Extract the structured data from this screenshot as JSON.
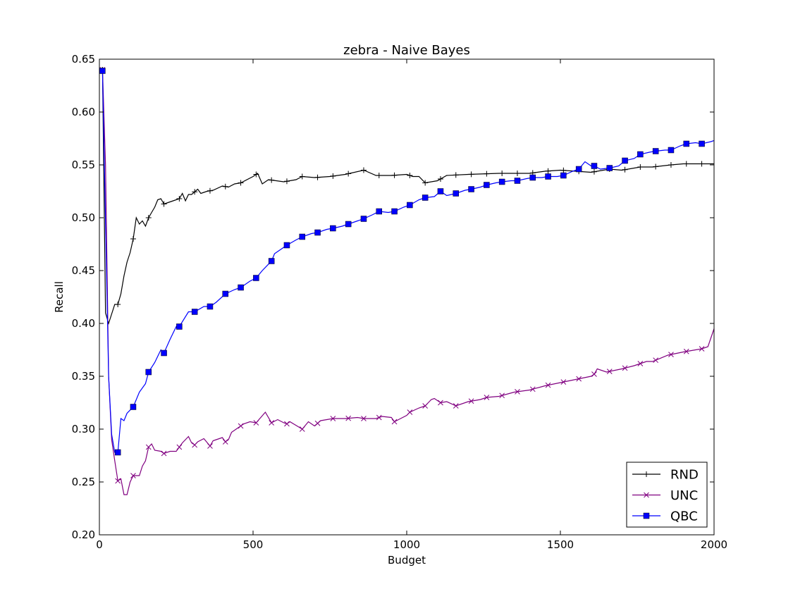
{
  "chart_data": {
    "type": "line",
    "title": "zebra - Naive Bayes",
    "xlabel": "Budget",
    "ylabel": "Recall",
    "xlim": [
      0,
      2000
    ],
    "ylim": [
      0.2,
      0.65
    ],
    "xticks": [
      "0",
      "500",
      "1000",
      "1500",
      "2000"
    ],
    "yticks": [
      "0.20",
      "0.25",
      "0.30",
      "0.35",
      "0.40",
      "0.45",
      "0.50",
      "0.55",
      "0.60",
      "0.65"
    ],
    "grid": false,
    "legend_position": "lower-right",
    "series": [
      {
        "name": "RND",
        "color": "#000000",
        "marker": "plus",
        "x": [
          10,
          20,
          30,
          50,
          60,
          70,
          80,
          90,
          100,
          110,
          120,
          130,
          140,
          150,
          160,
          170,
          180,
          190,
          200,
          210,
          220,
          240,
          260,
          270,
          280,
          290,
          300,
          320,
          330,
          350,
          370,
          400,
          420,
          440,
          460,
          500,
          515,
          530,
          550,
          600,
          640,
          660,
          700,
          750,
          800,
          860,
          900,
          950,
          1000,
          1020,
          1040,
          1060,
          1100,
          1130,
          1200,
          1300,
          1400,
          1450,
          1500,
          1550,
          1600,
          1660,
          1700,
          1760,
          1800,
          1860,
          1900,
          1960,
          2000
        ],
        "y": [
          0.64,
          0.41,
          0.4,
          0.418,
          0.418,
          0.428,
          0.445,
          0.458,
          0.467,
          0.48,
          0.5,
          0.494,
          0.497,
          0.492,
          0.5,
          0.505,
          0.51,
          0.517,
          0.518,
          0.513,
          0.514,
          0.516,
          0.518,
          0.523,
          0.516,
          0.522,
          0.522,
          0.527,
          0.523,
          0.525,
          0.526,
          0.53,
          0.529,
          0.532,
          0.533,
          0.539,
          0.542,
          0.532,
          0.536,
          0.534,
          0.536,
          0.539,
          0.538,
          0.539,
          0.541,
          0.545,
          0.54,
          0.54,
          0.541,
          0.539,
          0.539,
          0.533,
          0.535,
          0.54,
          0.541,
          0.542,
          0.542,
          0.544,
          0.545,
          0.544,
          0.543,
          0.546,
          0.545,
          0.548,
          0.548,
          0.55,
          0.551,
          0.551,
          0.551
        ]
      },
      {
        "name": "UNC",
        "color": "#800080",
        "marker": "x",
        "x": [
          10,
          20,
          30,
          40,
          50,
          60,
          70,
          80,
          90,
          100,
          110,
          120,
          130,
          140,
          150,
          160,
          170,
          180,
          200,
          210,
          230,
          250,
          260,
          270,
          290,
          300,
          310,
          320,
          340,
          360,
          370,
          380,
          400,
          410,
          420,
          430,
          450,
          470,
          490,
          510,
          540,
          560,
          580,
          600,
          610,
          620,
          660,
          680,
          700,
          720,
          760,
          800,
          840,
          860,
          900,
          920,
          950,
          960,
          980,
          1000,
          1010,
          1040,
          1060,
          1080,
          1090,
          1110,
          1130,
          1160,
          1200,
          1240,
          1260,
          1300,
          1350,
          1400,
          1450,
          1500,
          1550,
          1600,
          1610,
          1620,
          1650,
          1700,
          1740,
          1760,
          1780,
          1800,
          1850,
          1900,
          1940,
          1960,
          1980,
          2000
        ],
        "y": [
          0.64,
          0.55,
          0.35,
          0.29,
          0.27,
          0.251,
          0.253,
          0.238,
          0.238,
          0.25,
          0.256,
          0.256,
          0.256,
          0.265,
          0.27,
          0.283,
          0.286,
          0.28,
          0.279,
          0.277,
          0.279,
          0.279,
          0.283,
          0.287,
          0.293,
          0.287,
          0.285,
          0.288,
          0.291,
          0.284,
          0.289,
          0.29,
          0.292,
          0.288,
          0.29,
          0.297,
          0.301,
          0.305,
          0.307,
          0.306,
          0.316,
          0.306,
          0.309,
          0.306,
          0.305,
          0.307,
          0.3,
          0.307,
          0.303,
          0.308,
          0.31,
          0.31,
          0.311,
          0.31,
          0.31,
          0.312,
          0.311,
          0.307,
          0.31,
          0.313,
          0.316,
          0.32,
          0.322,
          0.328,
          0.329,
          0.325,
          0.326,
          0.322,
          0.326,
          0.328,
          0.33,
          0.331,
          0.335,
          0.337,
          0.341,
          0.344,
          0.347,
          0.35,
          0.352,
          0.357,
          0.354,
          0.357,
          0.36,
          0.362,
          0.364,
          0.364,
          0.37,
          0.373,
          0.375,
          0.376,
          0.378,
          0.395
        ]
      },
      {
        "name": "QBC",
        "color": "#0000ff",
        "marker": "square",
        "x": [
          10,
          30,
          40,
          50,
          60,
          70,
          80,
          90,
          110,
          130,
          150,
          160,
          180,
          200,
          210,
          230,
          250,
          260,
          290,
          310,
          340,
          360,
          380,
          410,
          440,
          460,
          490,
          510,
          530,
          560,
          570,
          600,
          610,
          640,
          660,
          690,
          710,
          740,
          760,
          790,
          810,
          840,
          860,
          890,
          910,
          940,
          960,
          990,
          1010,
          1040,
          1060,
          1090,
          1110,
          1130,
          1160,
          1190,
          1210,
          1240,
          1260,
          1290,
          1310,
          1340,
          1360,
          1390,
          1410,
          1440,
          1460,
          1490,
          1510,
          1540,
          1560,
          1580,
          1600,
          1610,
          1630,
          1660,
          1690,
          1710,
          1740,
          1760,
          1790,
          1810,
          1840,
          1860,
          1890,
          1910,
          1940,
          1960,
          1990,
          2000
        ],
        "y": [
          0.639,
          0.35,
          0.295,
          0.278,
          0.278,
          0.31,
          0.308,
          0.315,
          0.321,
          0.335,
          0.343,
          0.354,
          0.363,
          0.375,
          0.372,
          0.385,
          0.397,
          0.397,
          0.411,
          0.411,
          0.416,
          0.416,
          0.42,
          0.428,
          0.432,
          0.434,
          0.44,
          0.443,
          0.45,
          0.459,
          0.466,
          0.472,
          0.474,
          0.479,
          0.482,
          0.485,
          0.486,
          0.489,
          0.49,
          0.492,
          0.494,
          0.497,
          0.499,
          0.503,
          0.506,
          0.505,
          0.506,
          0.51,
          0.512,
          0.517,
          0.519,
          0.52,
          0.525,
          0.521,
          0.523,
          0.526,
          0.527,
          0.529,
          0.531,
          0.533,
          0.534,
          0.535,
          0.535,
          0.537,
          0.538,
          0.538,
          0.539,
          0.539,
          0.54,
          0.544,
          0.546,
          0.553,
          0.549,
          0.549,
          0.546,
          0.547,
          0.549,
          0.554,
          0.556,
          0.56,
          0.562,
          0.563,
          0.564,
          0.564,
          0.568,
          0.57,
          0.571,
          0.57,
          0.572,
          0.573
        ]
      }
    ]
  }
}
